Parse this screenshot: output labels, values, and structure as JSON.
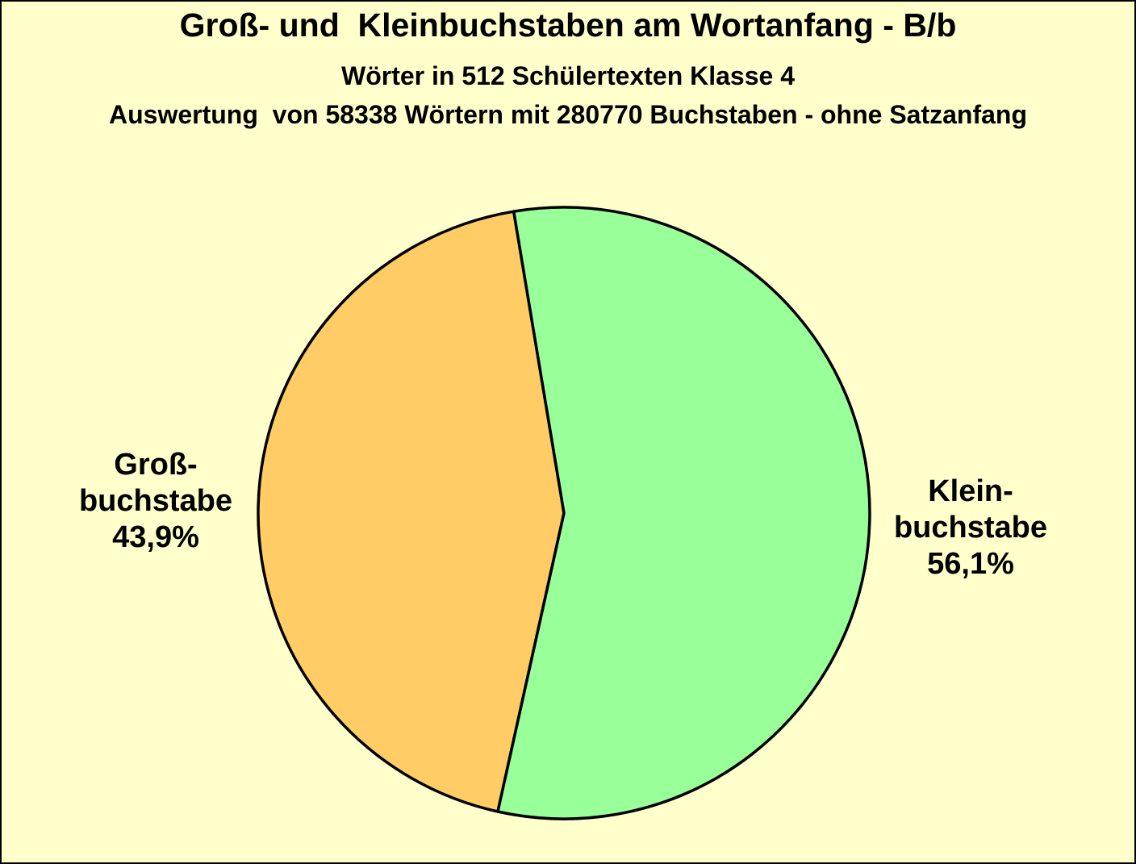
{
  "chart_data": {
    "type": "pie",
    "title": "Groß- und  Kleinbuchstaben am Wortanfang - B/b",
    "subtitle1": "Wörter in 512 Schülertexten Klasse 4",
    "subtitle2": "Auswertung  von 58338 Wörtern mit 280770 Buchstaben - ohne Satzanfang",
    "background_color": "#FFFFCC",
    "outline_color": "#000000",
    "legend_position": "none",
    "start_angle_deg": 192.5,
    "slices": [
      {
        "id": "grossbuchstabe",
        "name": "Großbuchstabe",
        "value_pct": 43.9,
        "display_label": "Groß-\nbuchstabe\n43,9%",
        "color": "#FFCC66",
        "label_side": "left"
      },
      {
        "id": "kleinbuchstabe",
        "name": "Kleinbuchstabe",
        "value_pct": 56.1,
        "display_label": "Klein-\nbuchstabe\n56,1%",
        "color": "#99FF99",
        "label_side": "right"
      }
    ]
  }
}
